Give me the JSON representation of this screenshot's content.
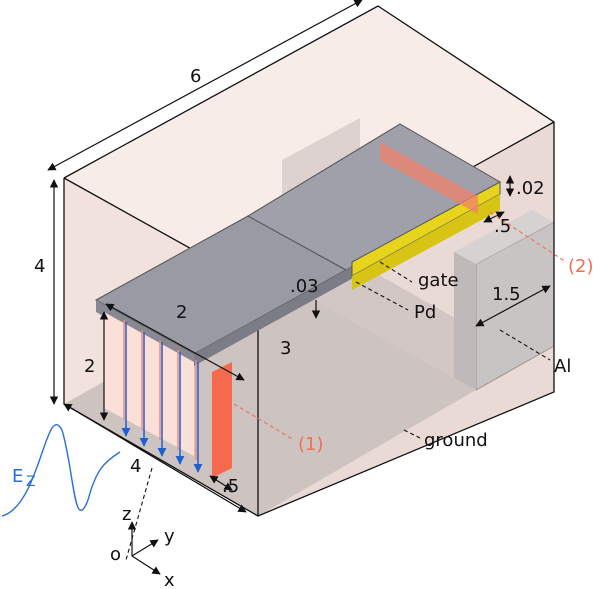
{
  "dimensions": {
    "width_top": "6",
    "height_left": "4",
    "beam_height": "2",
    "beam_width": "2",
    "beam_length": "3",
    "bottom_depth": "4",
    "gap": ".03",
    "port1_thickness": ".5",
    "port2_thickness": ".5",
    "gate_thickness": ".02",
    "al_size": "1.5"
  },
  "labels": {
    "gate": "gate",
    "pd": "Pd",
    "al": "Al",
    "ground": "ground",
    "port1": "(1)",
    "port2": "(2)",
    "field": "E",
    "field_sub": "Z"
  },
  "axes": {
    "origin": "o",
    "x": "x",
    "y": "y",
    "z": "z"
  },
  "colors": {
    "box": "#f2e4df",
    "ground": "#cfc6c3",
    "metal": "#8e8e98",
    "gate": "#e5d21a",
    "port": "#f26a4b",
    "field": "#2a6fd6"
  }
}
